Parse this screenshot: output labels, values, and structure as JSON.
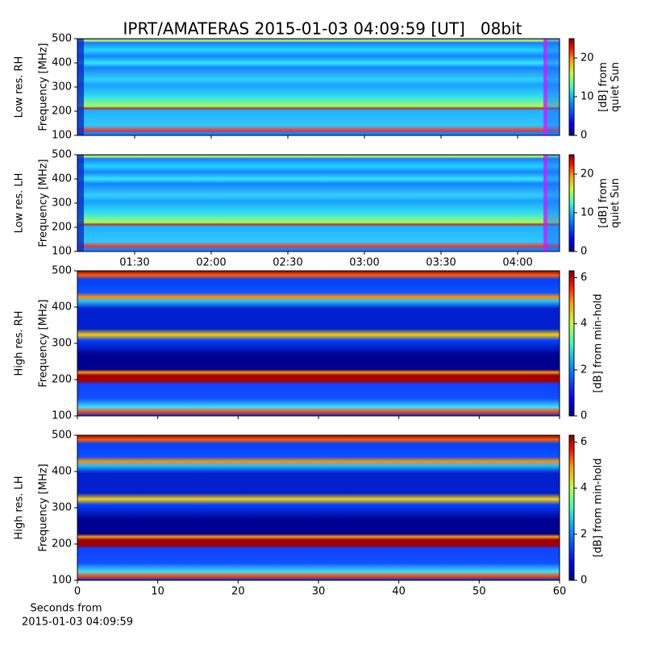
{
  "title": "IPRT/AMATERAS 2015-01-03 04:09:59 [UT]   08bit",
  "xlabel": [
    "Seconds from",
    "2015-01-03 04:09:59"
  ],
  "chart_data": [
    {
      "type": "heatmap",
      "ylabel": [
        "Low res. RH",
        "Frequency [MHz]"
      ],
      "ylim": [
        100,
        500
      ],
      "yticks": [
        100,
        200,
        300,
        400,
        500
      ],
      "xlim": [
        67.6,
        256.4
      ],
      "xticks": [
        90,
        120,
        150,
        180,
        210,
        240
      ],
      "x_tick_labels": false,
      "colorbar_label": [
        "[dB] from",
        "quiet Sun"
      ],
      "colorbar_lim": [
        0,
        25
      ],
      "colorbar_ticks": [
        0,
        10,
        20
      ]
    },
    {
      "type": "heatmap",
      "ylabel": [
        "Low res. LH",
        "Frequency [MHz]"
      ],
      "ylim": [
        100,
        500
      ],
      "yticks": [
        100,
        200,
        300,
        400,
        500
      ],
      "xlim": [
        67.6,
        256.4
      ],
      "xticks": [
        {
          "value": 90,
          "label": "01:30"
        },
        {
          "value": 120,
          "label": "02:00"
        },
        {
          "value": 150,
          "label": "02:30"
        },
        {
          "value": 180,
          "label": "03:00"
        },
        {
          "value": 210,
          "label": "03:30"
        },
        {
          "value": 240,
          "label": "04:00"
        }
      ],
      "x_tick_labels": true,
      "colorbar_label": [
        "[dB] from",
        "quiet Sun"
      ],
      "colorbar_lim": [
        0,
        25
      ],
      "colorbar_ticks": [
        0,
        10,
        20
      ]
    },
    {
      "type": "heatmap",
      "ylabel": [
        "High res. RH",
        "Frequency [MHz]"
      ],
      "ylim": [
        100,
        500
      ],
      "yticks": [
        100,
        200,
        300,
        400,
        500
      ],
      "xlim": [
        0,
        60
      ],
      "xticks": [
        0,
        10,
        20,
        30,
        40,
        50,
        60
      ],
      "x_tick_labels": false,
      "colorbar_label": [
        "[dB] from min-hold"
      ],
      "colorbar_lim": [
        0,
        6.3
      ],
      "colorbar_ticks": [
        0,
        2,
        4,
        6
      ]
    },
    {
      "type": "heatmap",
      "ylabel": [
        "High res. LH",
        "Frequency [MHz]"
      ],
      "ylim": [
        100,
        500
      ],
      "yticks": [
        100,
        200,
        300,
        400,
        500
      ],
      "xlim": [
        0,
        60
      ],
      "xticks": [
        0,
        10,
        20,
        30,
        40,
        50,
        60
      ],
      "x_tick_labels": true,
      "colorbar_label": [
        "[dB] from min-hold"
      ],
      "colorbar_lim": [
        0,
        6.3
      ],
      "colorbar_ticks": [
        0,
        2,
        4,
        6
      ]
    }
  ]
}
